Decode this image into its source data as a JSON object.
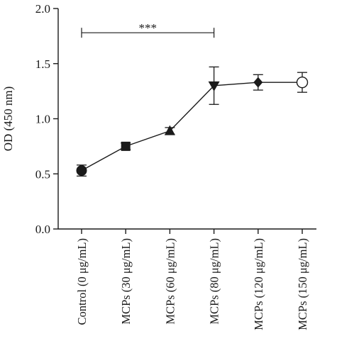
{
  "chart_data": {
    "type": "line",
    "title": "",
    "xlabel": "",
    "ylabel": "OD (450 nm)",
    "ylim": [
      0.0,
      2.0
    ],
    "y_ticks": [
      "0.0",
      "0.5",
      "1.0",
      "1.5",
      "2.0"
    ],
    "categories": [
      "Control (0 μg/mL)",
      "MCPs (30 μg/mL)",
      "MCPs (60 μg/mL)",
      "MCPs (80 μg/mL)",
      "MCPs (120 μg/mL)",
      "MCPs (150 μg/mL)"
    ],
    "series": [
      {
        "values": [
          0.53,
          0.75,
          0.89,
          1.3,
          1.33,
          1.33
        ],
        "error": [
          0.05,
          0.03,
          0.03,
          0.17,
          0.07,
          0.09
        ],
        "markers": [
          "circle-filled",
          "square-filled",
          "triangle-up-filled",
          "triangle-down-filled",
          "diamond-filled",
          "circle-open"
        ]
      }
    ],
    "significance": {
      "label": "***",
      "from_category": 0,
      "to_category": 3,
      "y": 1.78
    },
    "grid": false,
    "legend": "none",
    "colors": {
      "ink": "#1a1a1a",
      "background": "#ffffff"
    }
  }
}
